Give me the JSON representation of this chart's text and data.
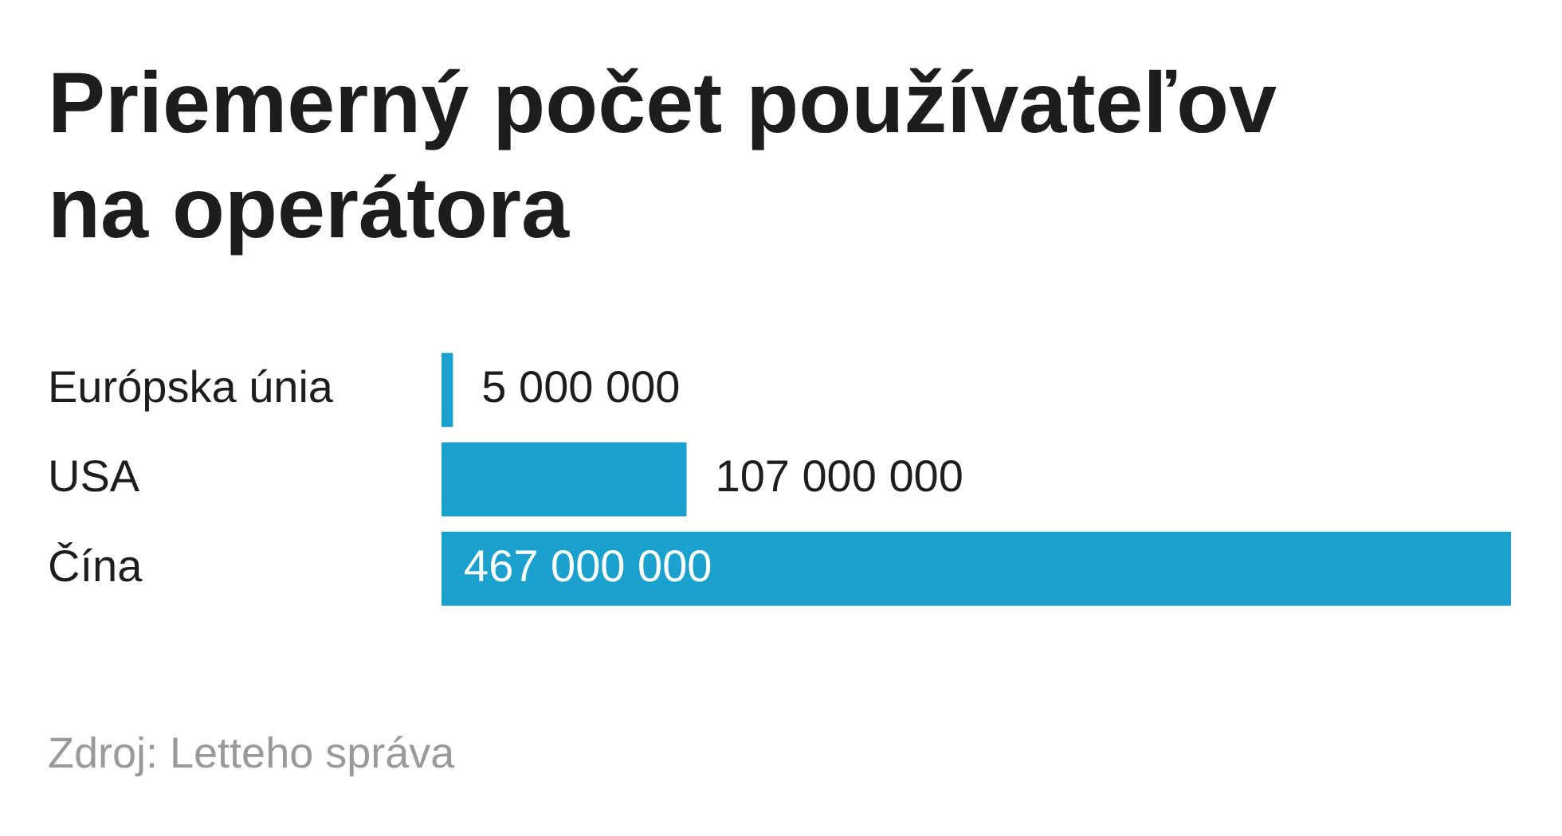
{
  "chart_data": {
    "type": "bar",
    "orientation": "horizontal",
    "title": "Priemerný počet používateľov na operátora",
    "categories": [
      "Európska únia",
      "USA",
      "Čína"
    ],
    "values": [
      5000000,
      107000000,
      467000000
    ],
    "value_labels": [
      "5 000 000",
      "107 000 000",
      "467 000 000"
    ],
    "color": "#1ba1cd",
    "legend": false,
    "annotations": [
      "Zdroj: Letteho správa"
    ]
  }
}
